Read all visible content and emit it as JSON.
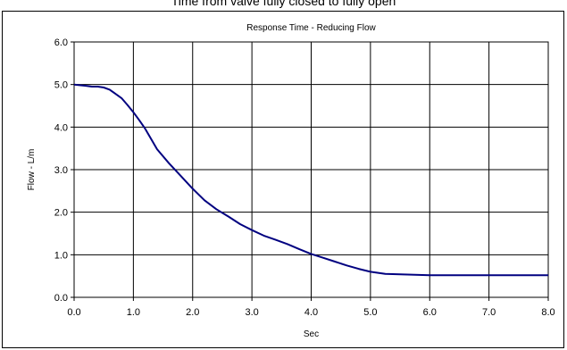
{
  "caption": "Time from valve fully closed to fully open",
  "chart_data": {
    "type": "line",
    "title": "Response Time - Reducing Flow",
    "xlabel": "Sec",
    "ylabel": "Flow - L/m",
    "xlim": [
      0,
      8
    ],
    "ylim": [
      0,
      6
    ],
    "x_ticks": [
      "0.0",
      "1.0",
      "2.0",
      "3.0",
      "4.0",
      "5.0",
      "6.0",
      "7.0",
      "8.0"
    ],
    "y_ticks": [
      "0.0",
      "1.0",
      "2.0",
      "3.0",
      "4.0",
      "5.0",
      "6.0"
    ],
    "grid": true,
    "series": [
      {
        "color": "#000080",
        "x": [
          0.0,
          0.2,
          0.3,
          0.4,
          0.5,
          0.6,
          0.7,
          0.8,
          0.9,
          1.0,
          1.1,
          1.2,
          1.3,
          1.4,
          1.6,
          1.8,
          2.0,
          2.2,
          2.4,
          2.6,
          2.8,
          3.0,
          3.2,
          3.4,
          3.6,
          3.8,
          4.0,
          4.2,
          4.4,
          4.6,
          4.8,
          5.0,
          5.25,
          5.5,
          5.75,
          6.0,
          6.5,
          7.0,
          7.5,
          8.0
        ],
        "y": [
          5.0,
          4.97,
          4.95,
          4.95,
          4.93,
          4.88,
          4.78,
          4.68,
          4.52,
          4.35,
          4.16,
          3.96,
          3.72,
          3.48,
          3.15,
          2.85,
          2.55,
          2.28,
          2.07,
          1.9,
          1.72,
          1.58,
          1.45,
          1.35,
          1.25,
          1.13,
          1.02,
          0.93,
          0.84,
          0.75,
          0.67,
          0.6,
          0.55,
          0.54,
          0.53,
          0.52,
          0.52,
          0.52,
          0.52,
          0.52
        ]
      }
    ]
  }
}
